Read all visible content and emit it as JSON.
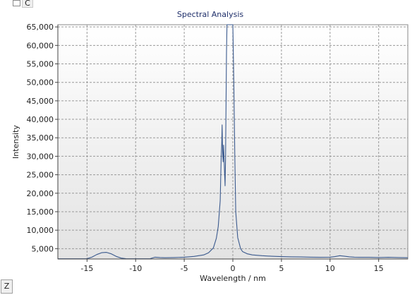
{
  "controls": {
    "c_label": "C",
    "z_label": "Z"
  },
  "chart_data": {
    "type": "line",
    "title": "Spectral Analysis",
    "xlabel": "Wavelength / nm",
    "ylabel": "Intensity",
    "xlim": [
      -18,
      18
    ],
    "ylim": [
      2200,
      65600
    ],
    "xticks": [
      -15,
      -10,
      -5,
      0,
      5,
      10,
      15
    ],
    "yticks": [
      5000,
      10000,
      15000,
      20000,
      25000,
      30000,
      35000,
      40000,
      45000,
      50000,
      55000,
      60000,
      65000
    ],
    "ytick_labels": [
      "5,000",
      "10,000",
      "15,000",
      "20,000",
      "25,000",
      "30,000",
      "35,000",
      "40,000",
      "45,000",
      "50,000",
      "55,000",
      "60,000",
      "65,000"
    ],
    "grid": true,
    "line_color": "#3b5a8e",
    "series": [
      {
        "x": [
          -18,
          -16,
          -15,
          -14.5,
          -14,
          -13.5,
          -13,
          -12.5,
          -12,
          -11.5,
          -11,
          -10.5,
          -10,
          -9.5,
          -9,
          -8.5,
          -8,
          -7.5,
          -7,
          -6,
          -5,
          -4,
          -3,
          -2.5,
          -2,
          -1.7,
          -1.5,
          -1.3,
          -1.2,
          -1.15,
          -1.1,
          -1.05,
          -1.0,
          -0.95,
          -0.9,
          -0.8,
          -0.75,
          -0.7,
          -0.65,
          -0.6,
          -0.55,
          -0.5,
          -0.45,
          -0.4,
          -0.3,
          -0.2,
          -0.1,
          0,
          0.1,
          0.2,
          0.3,
          0.5,
          0.8,
          1,
          1.5,
          2,
          3,
          4,
          5,
          6,
          7,
          8,
          9,
          10,
          10.5,
          11,
          11.5,
          12,
          12.5,
          13,
          14,
          15,
          16,
          17,
          18
        ],
        "y": [
          2250,
          2250,
          2300,
          2700,
          3400,
          3900,
          4000,
          3600,
          2900,
          2450,
          2300,
          2250,
          2250,
          2250,
          2250,
          2300,
          2700,
          2600,
          2550,
          2600,
          2700,
          2900,
          3300,
          3900,
          5200,
          7800,
          11000,
          18000,
          30000,
          33000,
          38500,
          31000,
          28500,
          33000,
          29000,
          22000,
          30000,
          45000,
          58000,
          65600,
          65600,
          65600,
          65600,
          65600,
          65600,
          65600,
          65600,
          65600,
          50000,
          30000,
          15000,
          8000,
          5000,
          4200,
          3600,
          3300,
          3100,
          2950,
          2850,
          2800,
          2750,
          2700,
          2650,
          2700,
          2850,
          3100,
          2950,
          2800,
          2700,
          2650,
          2650,
          2600,
          2650,
          2600,
          2550
        ]
      }
    ]
  }
}
